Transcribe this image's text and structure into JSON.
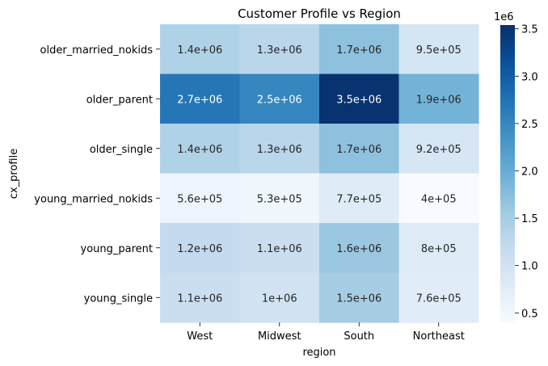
{
  "chart_data": {
    "type": "heatmap",
    "title": "Customer Profile vs Region",
    "xlabel": "region",
    "ylabel": "cx_profile",
    "x_categories": [
      "West",
      "Midwest",
      "South",
      "Northeast"
    ],
    "y_categories": [
      "older_married_nokids",
      "older_parent",
      "older_single",
      "young_married_nokids",
      "young_parent",
      "young_single"
    ],
    "values": [
      [
        1400000,
        1300000,
        1700000,
        950000
      ],
      [
        2700000,
        2500000,
        3500000,
        1900000
      ],
      [
        1400000,
        1300000,
        1700000,
        920000
      ],
      [
        560000,
        530000,
        770000,
        400000
      ],
      [
        1200000,
        1100000,
        1600000,
        800000
      ],
      [
        1100000,
        1000000,
        1500000,
        760000
      ]
    ],
    "labels": [
      [
        "1.4e+06",
        "1.3e+06",
        "1.7e+06",
        "9.5e+05"
      ],
      [
        "2.7e+06",
        "2.5e+06",
        "3.5e+06",
        "1.9e+06"
      ],
      [
        "1.4e+06",
        "1.3e+06",
        "1.7e+06",
        "9.2e+05"
      ],
      [
        "5.6e+05",
        "5.3e+05",
        "7.7e+05",
        "4e+05"
      ],
      [
        "1.2e+06",
        "1.1e+06",
        "1.6e+06",
        "8e+05"
      ],
      [
        "1.1e+06",
        "1e+06",
        "1.5e+06",
        "7.6e+05"
      ]
    ],
    "colormap": "Blues",
    "color_min": 400000,
    "color_max": 3540000,
    "colorbar_ticks": [
      "0.5",
      "1.0",
      "1.5",
      "2.0",
      "2.5",
      "3.0",
      "3.5"
    ],
    "colorbar_tick_values": [
      0.5,
      1.0,
      1.5,
      2.0,
      2.5,
      3.0,
      3.5
    ],
    "colorbar_multiplier": "1e6"
  }
}
